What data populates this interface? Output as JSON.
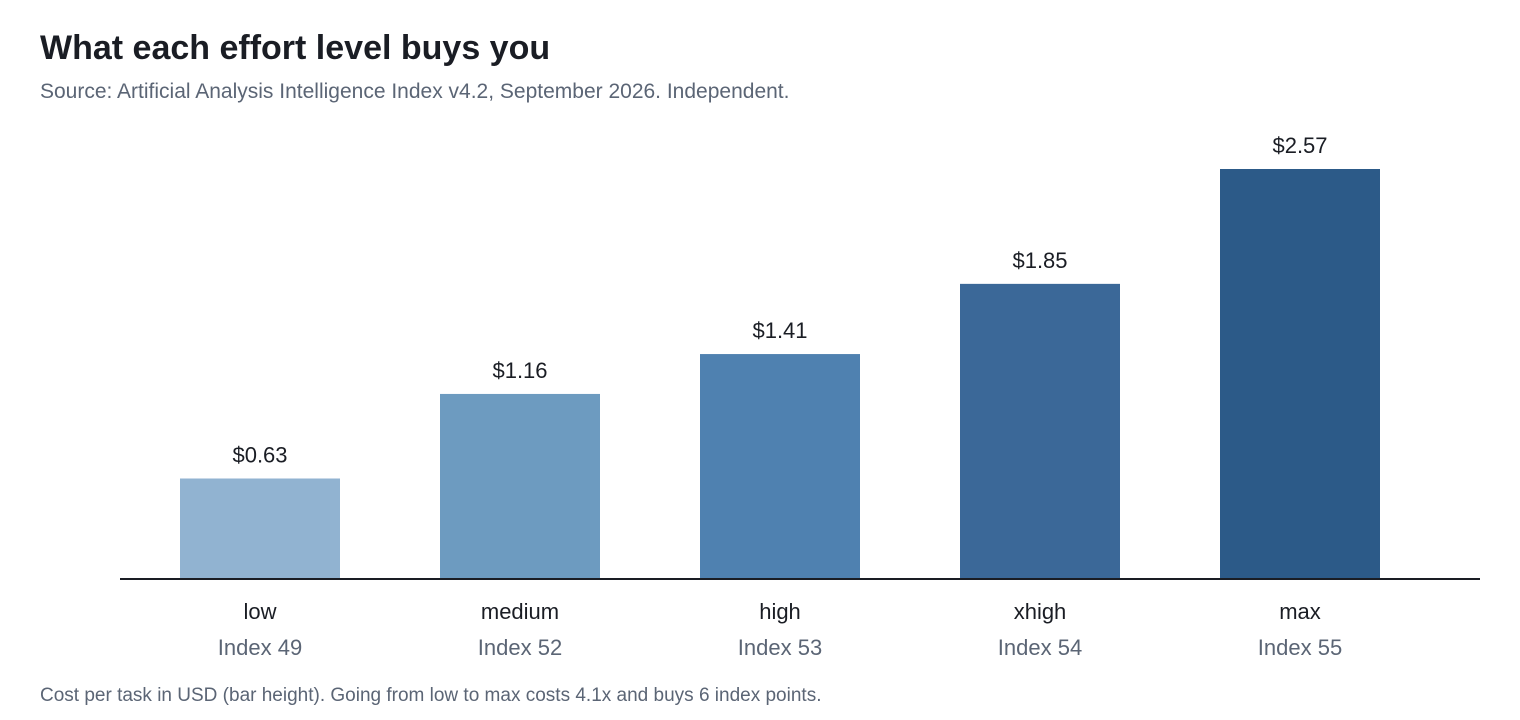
{
  "chart_data": {
    "type": "bar",
    "title": "What each effort level buys you",
    "subtitle": "Source: Artificial Analysis Intelligence Index v4.2, September 2026. Independent.",
    "categories": [
      "low",
      "medium",
      "high",
      "xhigh",
      "max"
    ],
    "values": [
      0.63,
      1.16,
      1.41,
      1.85,
      2.57
    ],
    "value_labels": [
      "$0.63",
      "$1.16",
      "$1.41",
      "$1.85",
      "$2.57"
    ],
    "secondary_labels": [
      "Index 49",
      "Index 52",
      "Index 53",
      "Index 54",
      "Index 55"
    ],
    "colors": [
      "#91b3d1",
      "#6d9bc0",
      "#4f81b0",
      "#3b6898",
      "#2c5a88"
    ],
    "ylim": [
      0,
      2.57
    ],
    "grid": false,
    "legend": "none",
    "note": "Cost per task in USD (bar height). Going from low to max costs 4.1x and buys 6 index points."
  },
  "axis_color": "#1a1d24"
}
